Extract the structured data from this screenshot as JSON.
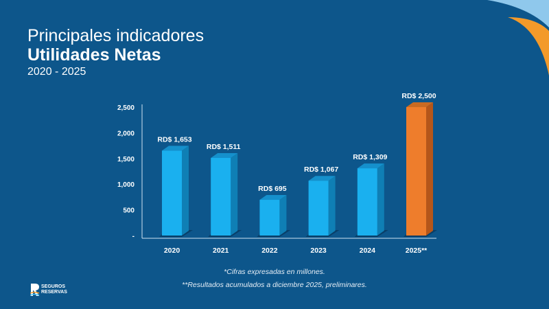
{
  "header": {
    "line1": "Principales indicadores",
    "line2": "Utilidades Netas",
    "line3": "2020 - 2025"
  },
  "colors": {
    "background": "#0d568b",
    "bar": "#1ab0ef",
    "bar_highlight": "#ee7d2c"
  },
  "chart_data": {
    "type": "bar",
    "categories": [
      "2020",
      "2021",
      "2022",
      "2023",
      "2024",
      "2025**"
    ],
    "values": [
      1653,
      1511,
      695,
      1067,
      1309,
      2500
    ],
    "data_labels": [
      "RD$ 1,653",
      "RD$ 1,511",
      "RD$ 695",
      "RD$ 1,067",
      "RD$ 1,309",
      "RD$ 2,500"
    ],
    "highlight": [
      "2025**"
    ],
    "yticks": [
      "-",
      "500",
      "1,000",
      "1,500",
      "2,000",
      "2,500"
    ],
    "ytick_values": [
      0,
      500,
      1000,
      1500,
      2000,
      2500
    ],
    "ylim": [
      0,
      2500
    ],
    "grid": false,
    "style": "3d"
  },
  "footnotes": [
    "*Cifras expresadas en millones.",
    "**Resultados acumulados a diciembre 2025, preliminares."
  ],
  "logo": {
    "line1": "SEGUROS",
    "line2": "RESERVAS"
  }
}
